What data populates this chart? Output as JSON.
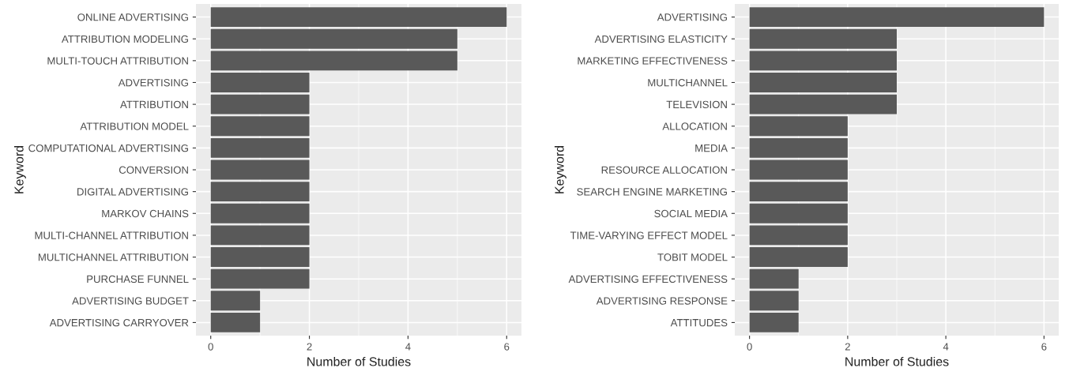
{
  "chart_data": [
    {
      "type": "bar",
      "orientation": "horizontal",
      "xlabel": "Number of Studies",
      "ylabel": "Keyword",
      "color": "#595959",
      "categories": [
        "ONLINE ADVERTISING",
        "ATTRIBUTION MODELING",
        "MULTI-TOUCH ATTRIBUTION",
        "ADVERTISING",
        "ATTRIBUTION",
        "ATTRIBUTION MODEL",
        "COMPUTATIONAL ADVERTISING",
        "CONVERSION",
        "DIGITAL ADVERTISING",
        "MARKOV CHAINS",
        "MULTI-CHANNEL ATTRIBUTION",
        "MULTICHANNEL ATTRIBUTION",
        "PURCHASE FUNNEL",
        "ADVERTISING BUDGET",
        "ADVERTISING CARRYOVER"
      ],
      "values": [
        6,
        5,
        5,
        2,
        2,
        2,
        2,
        2,
        2,
        2,
        2,
        2,
        2,
        1,
        1
      ],
      "xlim": [
        -0.3,
        6.3
      ],
      "xticks": [
        0,
        2,
        4,
        6
      ],
      "grid": true
    },
    {
      "type": "bar",
      "orientation": "horizontal",
      "xlabel": "Number of Studies",
      "ylabel": "Keyword",
      "color": "#595959",
      "categories": [
        "ADVERTISING",
        "ADVERTISING ELASTICITY",
        "MARKETING EFFECTIVENESS",
        "MULTICHANNEL",
        "TELEVISION",
        "ALLOCATION",
        "MEDIA",
        "RESOURCE ALLOCATION",
        "SEARCH ENGINE MARKETING",
        "SOCIAL MEDIA",
        "TIME-VARYING EFFECT MODEL",
        "TOBIT MODEL",
        "ADVERTISING EFFECTIVENESS",
        "ADVERTISING RESPONSE",
        "ATTITUDES"
      ],
      "values": [
        6,
        3,
        3,
        3,
        3,
        2,
        2,
        2,
        2,
        2,
        2,
        2,
        1,
        1,
        1
      ],
      "xlim": [
        -0.3,
        6.3
      ],
      "xticks": [
        0,
        2,
        4,
        6
      ],
      "grid": true
    }
  ]
}
